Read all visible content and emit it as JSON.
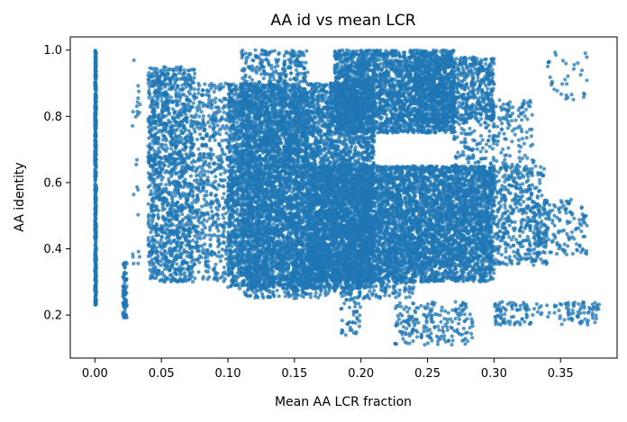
{
  "chart_data": {
    "type": "scatter",
    "title": "AA id vs mean LCR",
    "xlabel": "Mean AA LCR fraction",
    "ylabel": "AA identity",
    "xlim": [
      -0.0185,
      0.3925
    ],
    "ylim": [
      0.07,
      1.04
    ],
    "xticks": [
      0.0,
      0.05,
      0.1,
      0.15,
      0.2,
      0.25,
      0.3,
      0.35
    ],
    "xtick_labels": [
      "0.00",
      "0.05",
      "0.10",
      "0.15",
      "0.20",
      "0.25",
      "0.30",
      "0.35"
    ],
    "yticks": [
      0.2,
      0.4,
      0.6,
      0.8,
      1.0
    ],
    "ytick_labels": [
      "0.2",
      "0.4",
      "0.6",
      "0.8",
      "1.0"
    ],
    "grid": false,
    "legend": "none",
    "point_color": "#1f77b4",
    "clusters": [
      {
        "x": [
          0.0,
          0.001
        ],
        "y": [
          0.23,
          1.0
        ],
        "n": 500
      },
      {
        "x": [
          0.021,
          0.024
        ],
        "y": [
          0.19,
          0.36
        ],
        "n": 80
      },
      {
        "x": [
          0.028,
          0.034
        ],
        "y": [
          0.35,
          0.97
        ],
        "n": 25
      },
      {
        "x": [
          0.04,
          0.075
        ],
        "y": [
          0.3,
          0.95
        ],
        "n": 1400
      },
      {
        "x": [
          0.075,
          0.1
        ],
        "y": [
          0.3,
          0.9
        ],
        "n": 500
      },
      {
        "x": [
          0.1,
          0.21
        ],
        "y": [
          0.28,
          0.9
        ],
        "n": 6500
      },
      {
        "x": [
          0.11,
          0.16
        ],
        "y": [
          0.25,
          1.0
        ],
        "n": 1500
      },
      {
        "x": [
          0.16,
          0.3
        ],
        "y": [
          0.3,
          0.65
        ],
        "n": 4500
      },
      {
        "x": [
          0.2,
          0.34
        ],
        "y": [
          0.35,
          0.65
        ],
        "n": 1500
      },
      {
        "x": [
          0.18,
          0.27
        ],
        "y": [
          0.75,
          1.0
        ],
        "n": 2500
      },
      {
        "x": [
          0.24,
          0.3
        ],
        "y": [
          0.78,
          0.98
        ],
        "n": 800
      },
      {
        "x": [
          0.27,
          0.33
        ],
        "y": [
          0.63,
          0.85
        ],
        "n": 250
      },
      {
        "x": [
          0.33,
          0.37
        ],
        "y": [
          0.38,
          0.55
        ],
        "n": 150
      },
      {
        "x": [
          0.15,
          0.24
        ],
        "y": [
          0.25,
          0.4
        ],
        "n": 400
      },
      {
        "x": [
          0.185,
          0.2
        ],
        "y": [
          0.13,
          0.3
        ],
        "n": 60
      },
      {
        "x": [
          0.225,
          0.285
        ],
        "y": [
          0.11,
          0.24
        ],
        "n": 200
      },
      {
        "x": [
          0.3,
          0.38
        ],
        "y": [
          0.17,
          0.24
        ],
        "n": 160
      },
      {
        "x": [
          0.34,
          0.37
        ],
        "y": [
          0.85,
          1.0
        ],
        "n": 35
      }
    ]
  }
}
